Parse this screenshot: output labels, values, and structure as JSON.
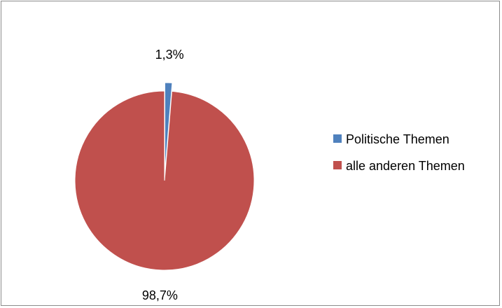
{
  "chart_data": {
    "type": "pie",
    "categories": [
      "Politische Themen",
      "alle anderen Themen"
    ],
    "values": [
      1.3,
      98.7
    ],
    "data_labels": [
      "1,3%",
      "98,7%"
    ],
    "colors": [
      "#4f81bd",
      "#c0504d"
    ],
    "legend": {
      "placement": "right",
      "entries": [
        "Politische Themen",
        "alle anderen Themen"
      ]
    },
    "title": "",
    "start_angle_deg": 0,
    "direction": "clockwise",
    "exploded_slice_index": 0
  }
}
